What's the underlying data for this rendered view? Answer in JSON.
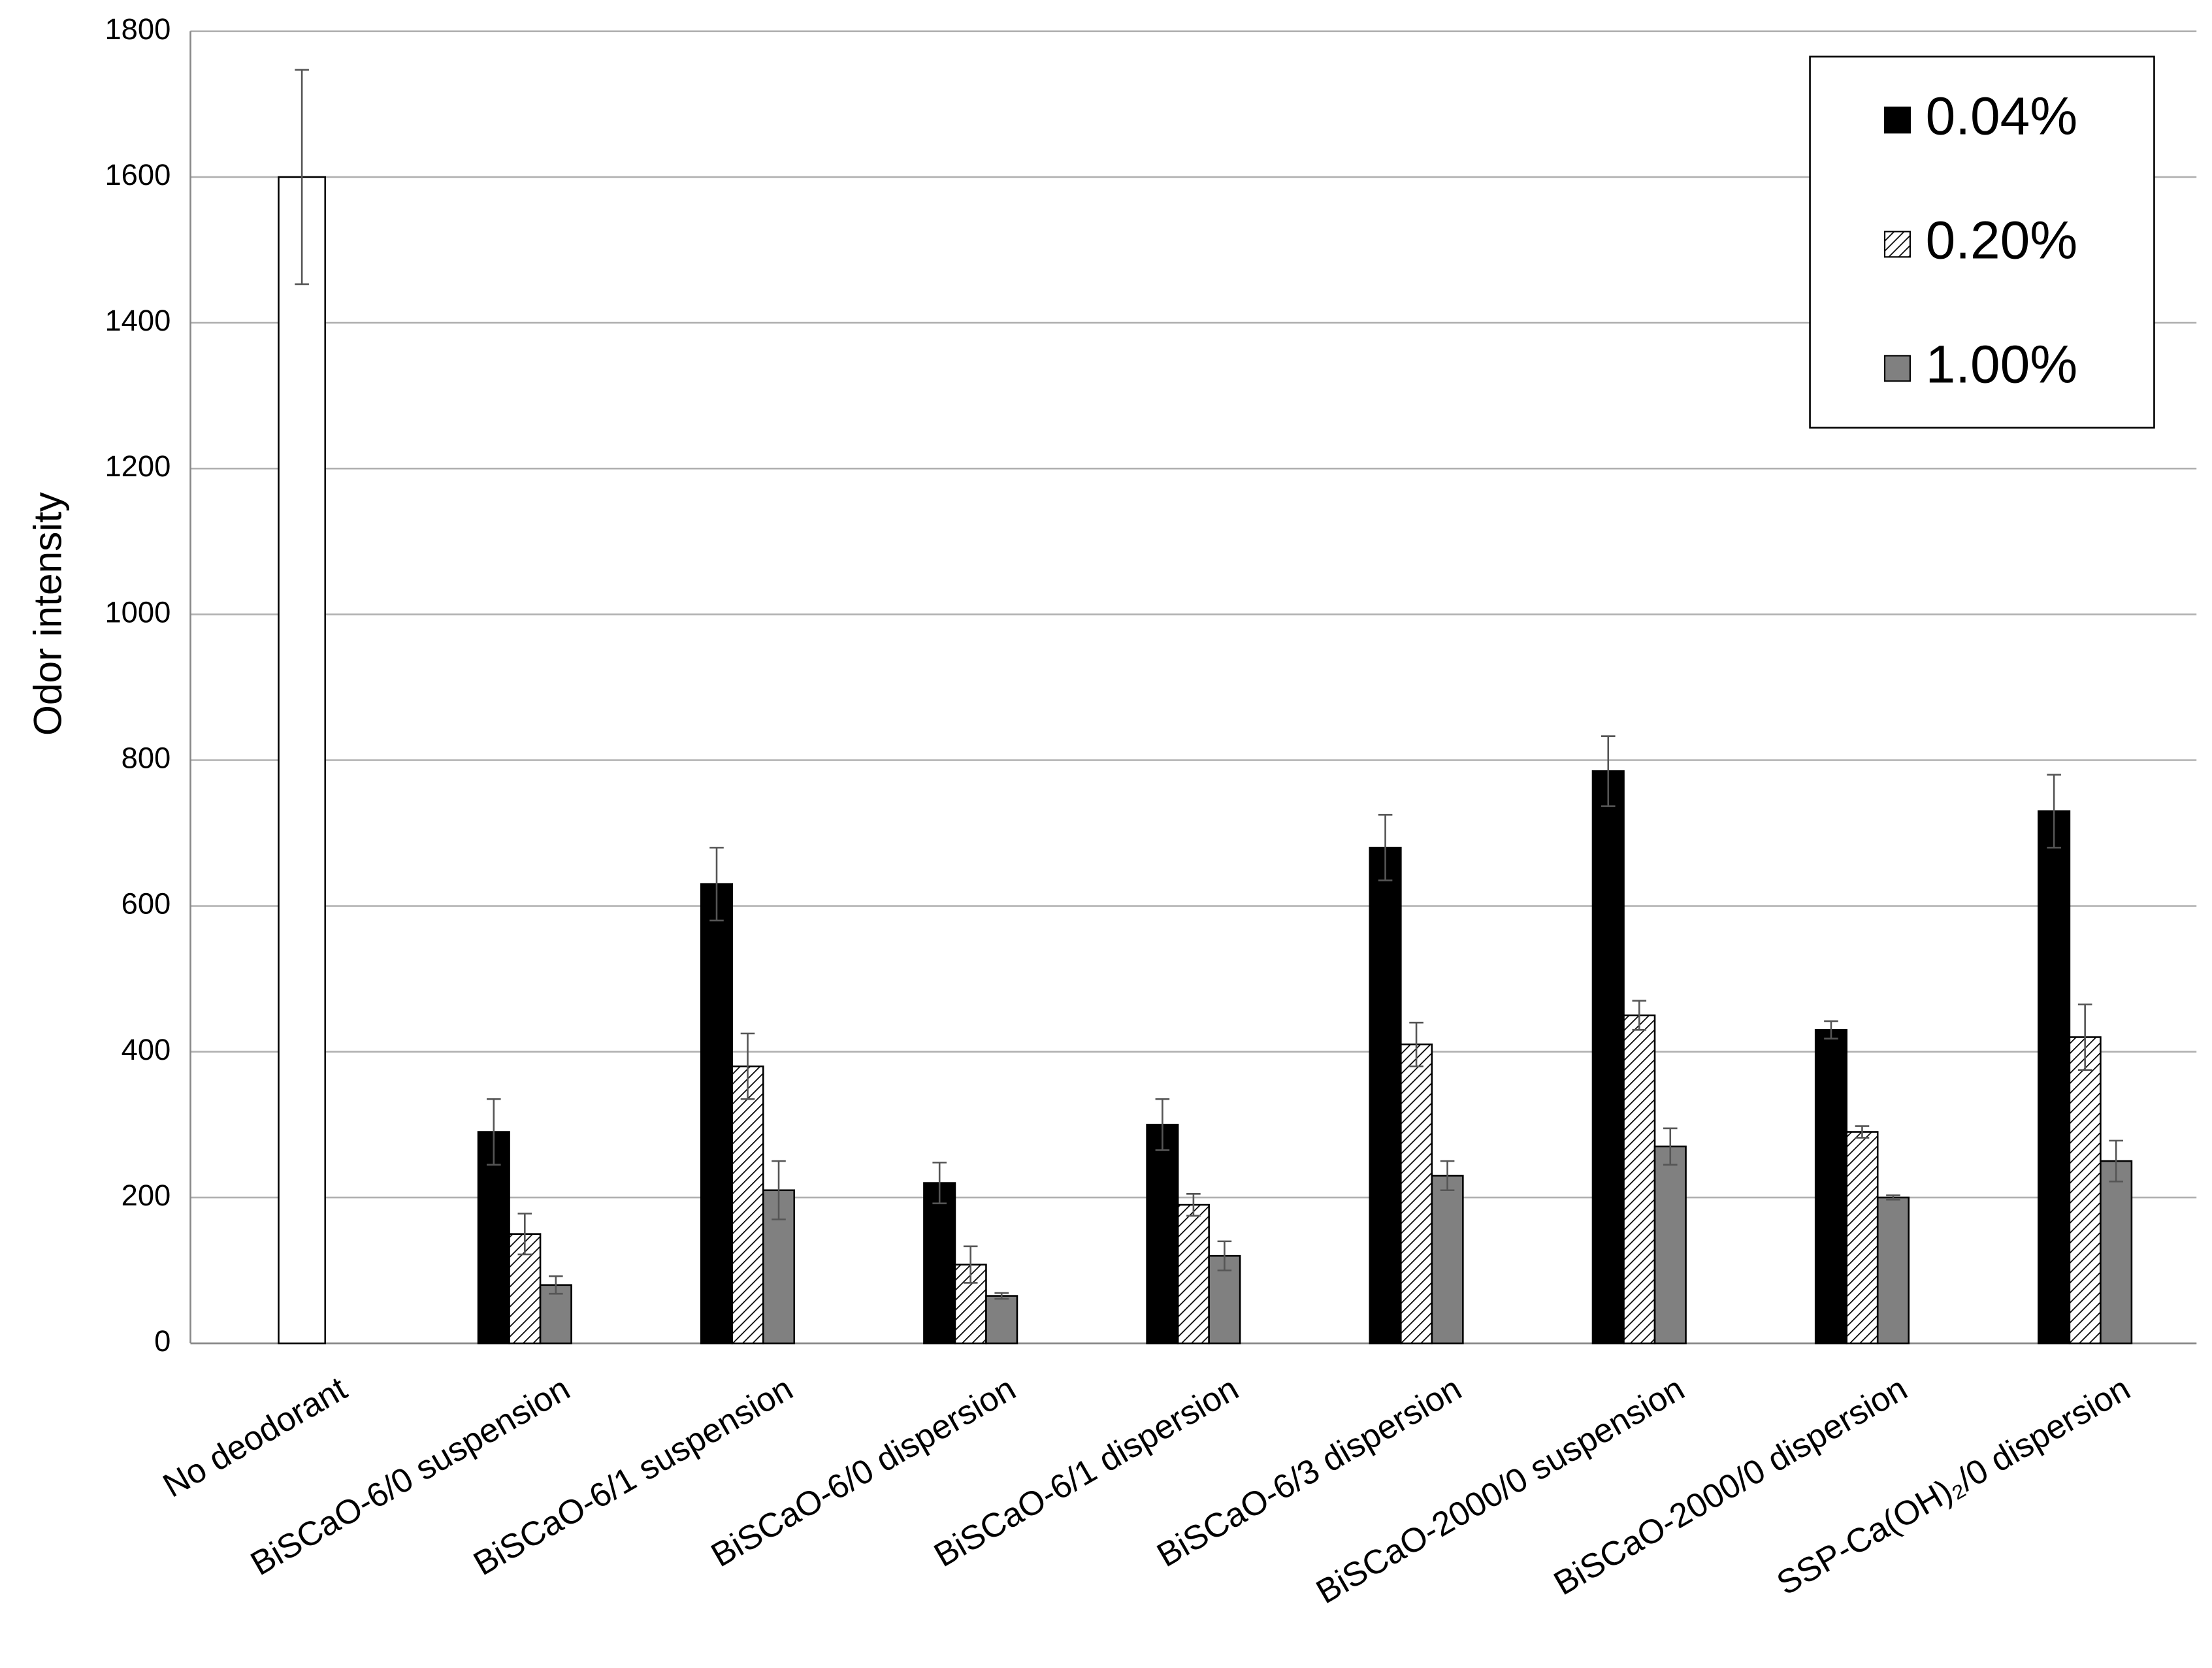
{
  "chart_data": {
    "type": "bar",
    "y_label": "Odor intensity",
    "categories": [
      "No deodorant",
      "BiSCaO-6/0 suspension",
      "BiSCaO-6/1 suspension",
      "BiSCaO-6/0 dispersion",
      "BiSCaO-6/1 dispersion",
      "BiSCaO-6/3 dispersion",
      "BiSCaO-2000/0 suspension",
      "BiSCaO-2000/0 dispersion",
      "SSP-Ca(OH)₂/0 dispersion"
    ],
    "series": [
      {
        "name": "0.04%",
        "color": "#000000",
        "first_color": "#ffffff",
        "values": [
          1600,
          290,
          630,
          220,
          300,
          680,
          785,
          430,
          730
        ],
        "errors": [
          147,
          45,
          50,
          28,
          35,
          45,
          48,
          12,
          50
        ]
      },
      {
        "name": "0.20%",
        "color": "#ffffff",
        "pattern": "hatch",
        "values": [
          null,
          150,
          380,
          108,
          190,
          410,
          450,
          290,
          420
        ],
        "errors": [
          null,
          28,
          45,
          25,
          15,
          30,
          20,
          8,
          45
        ]
      },
      {
        "name": "1.00%",
        "color": "#808080",
        "values": [
          null,
          80,
          210,
          65,
          120,
          230,
          270,
          200,
          250
        ],
        "errors": [
          null,
          12,
          40,
          4,
          20,
          20,
          25,
          3,
          28
        ]
      }
    ],
    "ylim": [
      0,
      1800
    ],
    "yticks": [
      0,
      200,
      400,
      600,
      800,
      1000,
      1200,
      1400,
      1600,
      1800
    ],
    "grid": true,
    "legend": "top-right"
  }
}
